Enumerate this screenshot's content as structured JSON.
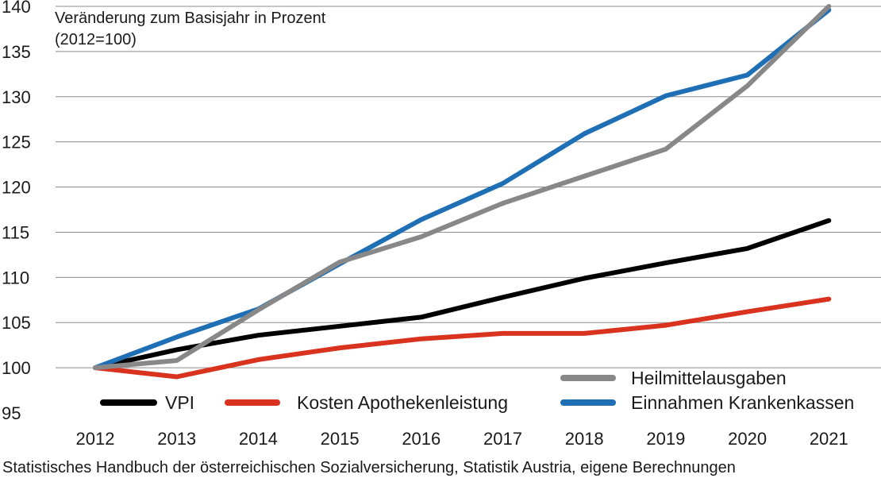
{
  "chart_data": {
    "type": "line",
    "title": "",
    "subtitle_lines": [
      "Veränderung zum Basisjahr in Prozent",
      "(2012=100)"
    ],
    "xlabel": "",
    "ylabel": "",
    "x": [
      "2012",
      "2013",
      "2014",
      "2015",
      "2016",
      "2017",
      "2018",
      "2019",
      "2020",
      "2021"
    ],
    "ylim": [
      95,
      140
    ],
    "yticks": [
      "95",
      "100",
      "105",
      "110",
      "115",
      "120",
      "125",
      "130",
      "135",
      "140"
    ],
    "grid": "horizontal",
    "legend_position": "bottom",
    "series": [
      {
        "name": "VPI",
        "color": "#000000",
        "values": [
          100,
          102.0,
          103.6,
          104.6,
          105.6,
          107.8,
          109.9,
          111.6,
          113.2,
          116.3
        ]
      },
      {
        "name": "Kosten Apothekenleistung",
        "color": "#d9321f",
        "values": [
          100,
          99.0,
          100.9,
          102.2,
          103.2,
          103.8,
          103.8,
          104.7,
          106.2,
          107.6
        ]
      },
      {
        "name": "Heilmittelausgaben",
        "color": "#888888",
        "values": [
          100,
          100.8,
          106.4,
          111.7,
          114.5,
          118.2,
          121.2,
          124.2,
          131.2,
          140.0
        ]
      },
      {
        "name": "Einnahmen Krankenkassen",
        "color": "#1f6fb5",
        "values": [
          100,
          103.4,
          106.5,
          111.5,
          116.4,
          120.4,
          125.9,
          130.1,
          132.4,
          139.6
        ]
      }
    ]
  },
  "source": "Statistisches Handbuch der österreichischen Sozialversicherung, Statistik Austria, eigene Berechnungen"
}
